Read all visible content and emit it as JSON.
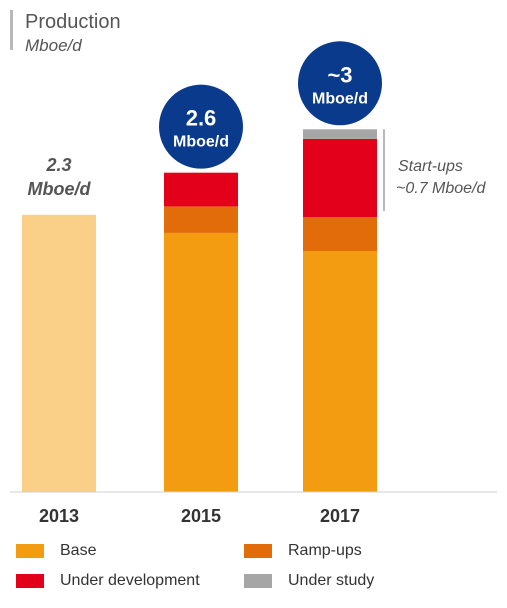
{
  "header": {
    "title": "Production",
    "subtitle": "Mboe/d"
  },
  "chart_data": {
    "type": "bar",
    "stacked": true,
    "categories": [
      "2013",
      "2015",
      "2017"
    ],
    "series": [
      {
        "name": "Base",
        "values": [
          2.3,
          2.15,
          2.0
        ],
        "color": "#F39C12"
      },
      {
        "name": "Ramp-ups",
        "values": [
          0,
          0.22,
          0.28
        ],
        "color": "#E36C0A"
      },
      {
        "name": "Under development",
        "values": [
          0,
          0.28,
          0.65
        ],
        "color": "#E2001A"
      },
      {
        "name": "Under study",
        "values": [
          0,
          0,
          0.08
        ],
        "color": "#A6A6A6"
      }
    ],
    "single_bar_color_2013": "#FAD089",
    "totals": [
      {
        "category": "2013",
        "line1": "2.3",
        "line2": "Mboe/d",
        "style": "plain"
      },
      {
        "category": "2015",
        "line1": "2.6",
        "line2": "Mboe/d",
        "style": "circle"
      },
      {
        "category": "2017",
        "line1": "~3",
        "line2": "Mboe/d",
        "style": "circle"
      }
    ],
    "annotation": {
      "line1": "Start-ups",
      "line2": "~0.7 Mboe/d"
    },
    "ylim": [
      0,
      3.1
    ],
    "grid": false,
    "legend_position": "bottom",
    "circle_color": "#0A3A8C"
  }
}
